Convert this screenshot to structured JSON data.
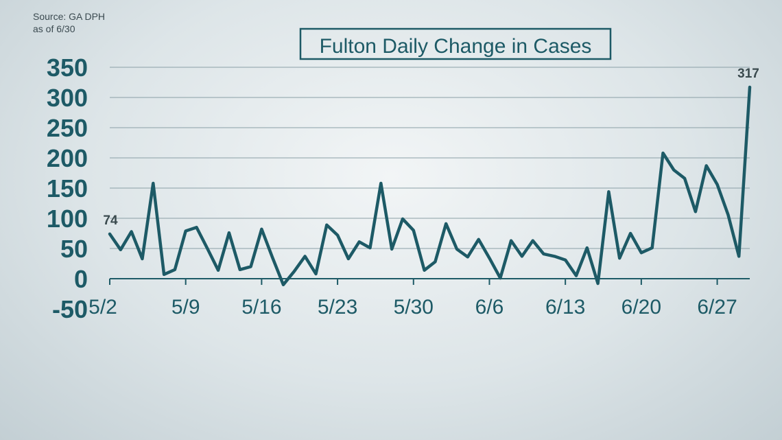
{
  "source": {
    "line1": "Source: GA DPH",
    "line2": "as of 6/30"
  },
  "chart_data": {
    "type": "line",
    "title": "Fulton Daily Change in Cases",
    "xlabel": "",
    "ylabel": "",
    "ylim": [
      -50,
      350
    ],
    "yticks": [
      350,
      300,
      250,
      200,
      150,
      100,
      50,
      0,
      -50
    ],
    "xticks": [
      "5/2",
      "5/9",
      "5/16",
      "5/23",
      "5/30",
      "6/6",
      "6/13",
      "6/20",
      "6/27"
    ],
    "grid": true,
    "line_color": "#1d5a66",
    "x": [
      "5/2",
      "5/3",
      "5/4",
      "5/5",
      "5/6",
      "5/7",
      "5/8",
      "5/9",
      "5/10",
      "5/11",
      "5/12",
      "5/13",
      "5/14",
      "5/15",
      "5/16",
      "5/17",
      "5/18",
      "5/19",
      "5/20",
      "5/21",
      "5/22",
      "5/23",
      "5/24",
      "5/25",
      "5/26",
      "5/27",
      "5/28",
      "5/29",
      "5/30",
      "5/31",
      "6/1",
      "6/2",
      "6/3",
      "6/4",
      "6/5",
      "6/6",
      "6/7",
      "6/8",
      "6/9",
      "6/10",
      "6/11",
      "6/12",
      "6/13",
      "6/14",
      "6/15",
      "6/16",
      "6/17",
      "6/18",
      "6/19",
      "6/20",
      "6/21",
      "6/22",
      "6/23",
      "6/24",
      "6/25",
      "6/26",
      "6/27",
      "6/28",
      "6/29",
      "6/30"
    ],
    "values": [
      74,
      48,
      78,
      33,
      158,
      7,
      15,
      79,
      85,
      50,
      14,
      76,
      15,
      20,
      82,
      35,
      -10,
      12,
      37,
      8,
      89,
      72,
      33,
      61,
      51,
      158,
      49,
      99,
      80,
      14,
      28,
      91,
      49,
      36,
      65,
      34,
      1,
      63,
      37,
      63,
      41,
      37,
      31,
      5,
      51,
      -8,
      144,
      34,
      75,
      43,
      51,
      208,
      180,
      166,
      111,
      187,
      156,
      106,
      37,
      317
    ],
    "annotations": [
      {
        "x": "5/2",
        "value": 74,
        "label": "74"
      },
      {
        "x": "6/30",
        "value": 317,
        "label": "317"
      }
    ]
  }
}
